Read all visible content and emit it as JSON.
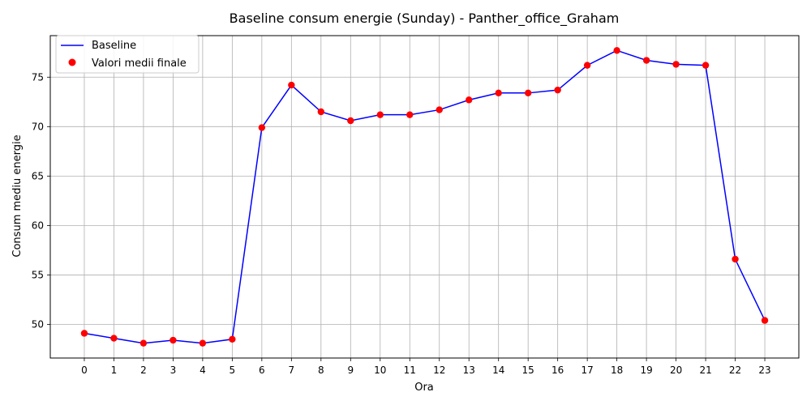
{
  "chart_data": {
    "type": "line",
    "title": "Baseline consum energie (Sunday) - Panther_office_Graham",
    "xlabel": "Ora",
    "ylabel": "Consum mediu energie",
    "x": [
      0,
      1,
      2,
      3,
      4,
      5,
      6,
      7,
      8,
      9,
      10,
      11,
      12,
      13,
      14,
      15,
      16,
      17,
      18,
      19,
      20,
      21,
      22,
      23
    ],
    "xticks": [
      "0",
      "1",
      "2",
      "3",
      "4",
      "5",
      "6",
      "7",
      "8",
      "9",
      "10",
      "11",
      "12",
      "13",
      "14",
      "15",
      "16",
      "17",
      "18",
      "19",
      "20",
      "21",
      "22",
      "23"
    ],
    "xlim": [
      -1.15,
      24.15
    ],
    "ylim": [
      46.6,
      79.2
    ],
    "yticks": [
      50,
      55,
      60,
      65,
      70,
      75
    ],
    "grid": true,
    "legend_position": "top-left",
    "series": [
      {
        "name": "Baseline",
        "kind": "line",
        "color": "#0000ff",
        "values": [
          49.1,
          48.6,
          48.1,
          48.4,
          48.1,
          48.5,
          69.9,
          74.2,
          71.5,
          70.6,
          71.2,
          71.2,
          71.7,
          72.7,
          73.4,
          73.4,
          73.7,
          76.2,
          77.7,
          76.7,
          76.3,
          76.2,
          56.6,
          50.4
        ]
      },
      {
        "name": "Valori medii finale",
        "kind": "scatter",
        "color": "#ff0000",
        "values": [
          49.1,
          48.6,
          48.1,
          48.4,
          48.1,
          48.5,
          69.9,
          74.2,
          71.5,
          70.6,
          71.2,
          71.2,
          71.7,
          72.7,
          73.4,
          73.4,
          73.7,
          76.2,
          77.7,
          76.7,
          76.3,
          76.2,
          56.6,
          50.4
        ]
      }
    ]
  }
}
